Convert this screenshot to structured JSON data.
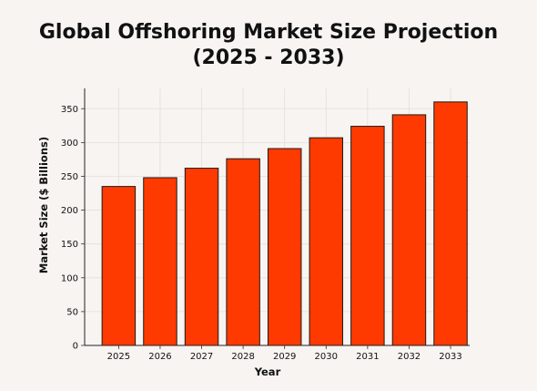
{
  "chart_data": {
    "type": "bar",
    "title_line1": "Global Offshoring Market Size Projection",
    "title_line2": "(2025 - 2033)",
    "xlabel": "Year",
    "ylabel": "Market Size ($ Billions)",
    "categories": [
      "2025",
      "2026",
      "2027",
      "2028",
      "2029",
      "2030",
      "2031",
      "2032",
      "2033"
    ],
    "values": [
      235,
      248,
      262,
      276,
      291,
      307,
      324,
      341,
      360
    ],
    "ylim": [
      0,
      380
    ],
    "yticks": [
      0,
      50,
      100,
      150,
      200,
      250,
      300,
      350
    ],
    "grid": true,
    "bar_color": "#ff3a00",
    "bar_edge_color": "#1a1a1a"
  }
}
